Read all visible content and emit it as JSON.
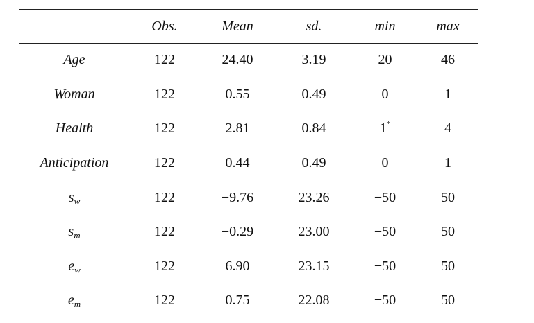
{
  "table": {
    "headers": [
      "",
      "Obs.",
      "Mean",
      "sd.",
      "min",
      "max"
    ],
    "rows": [
      {
        "var": "Age",
        "var_sub": "",
        "obs": "122",
        "mean": "24.40",
        "sd": "3.19",
        "min": "20",
        "min_note": "",
        "max": "46"
      },
      {
        "var": "Woman",
        "var_sub": "",
        "obs": "122",
        "mean": "0.55",
        "sd": "0.49",
        "min": "0",
        "min_note": "",
        "max": "1"
      },
      {
        "var": "Health",
        "var_sub": "",
        "obs": "122",
        "mean": "2.81",
        "sd": "0.84",
        "min": "1",
        "min_note": "*",
        "max": "4"
      },
      {
        "var": "Anticipation",
        "var_sub": "",
        "obs": "122",
        "mean": "0.44",
        "sd": "0.49",
        "min": "0",
        "min_note": "",
        "max": "1"
      },
      {
        "var": "s",
        "var_sub": "w",
        "obs": "122",
        "mean": "−9.76",
        "sd": "23.26",
        "min": "−50",
        "min_note": "",
        "max": "50"
      },
      {
        "var": "s",
        "var_sub": "m",
        "obs": "122",
        "mean": "−0.29",
        "sd": "23.00",
        "min": "−50",
        "min_note": "",
        "max": "50"
      },
      {
        "var": "e",
        "var_sub": "w",
        "obs": "122",
        "mean": "6.90",
        "sd": "23.15",
        "min": "−50",
        "min_note": "",
        "max": "50"
      },
      {
        "var": "e",
        "var_sub": "m",
        "obs": "122",
        "mean": "0.75",
        "sd": "22.08",
        "min": "−50",
        "min_note": "",
        "max": "50"
      }
    ]
  }
}
